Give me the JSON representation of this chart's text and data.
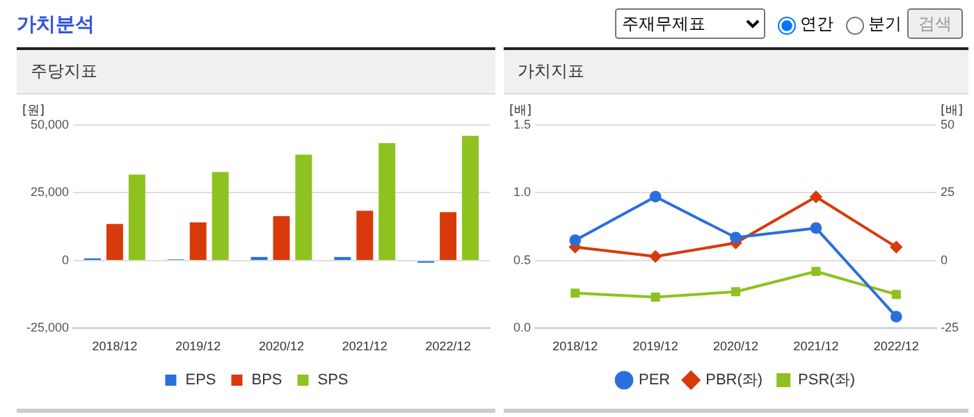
{
  "chart_data": [
    {
      "type": "bar",
      "title": "주당지표",
      "ylabel": "[원]",
      "categories": [
        "2018/12",
        "2019/12",
        "2020/12",
        "2021/12",
        "2022/12"
      ],
      "series": [
        {
          "name": "EPS",
          "color": "#2a6fdb",
          "values": [
            800,
            400,
            1300,
            1300,
            -800
          ]
        },
        {
          "name": "BPS",
          "color": "#d83a0c",
          "values": [
            13500,
            14100,
            16400,
            18400,
            17900
          ]
        },
        {
          "name": "SPS",
          "color": "#8dc21f",
          "values": [
            31700,
            32700,
            39100,
            43300,
            46000
          ]
        }
      ],
      "ylim": [
        -25000,
        50000
      ],
      "yticks": [
        {
          "value": -25000,
          "label": "-25,000"
        },
        {
          "value": 0,
          "label": "0"
        },
        {
          "value": 25000,
          "label": "25,000"
        },
        {
          "value": 50000,
          "label": "50,000"
        }
      ],
      "grid": "y",
      "legend": "bottom",
      "annotations": [
        "가치분석",
        "주재무제표",
        "연간",
        "분기",
        "검색"
      ]
    },
    {
      "type": "line",
      "title": "가치지표",
      "ylabel": "[배]",
      "y2label": "[배]",
      "categories": [
        "2018/12",
        "2019/12",
        "2020/12",
        "2021/12",
        "2022/12"
      ],
      "series": [
        {
          "name": "PER",
          "color": "#2a6fdb",
          "axis": "y2",
          "marker": "circle",
          "values": [
            7.5,
            23.6,
            8.5,
            12,
            -20.7
          ]
        },
        {
          "name": "PBR(좌)",
          "color": "#d83a0c",
          "marker": "diamond",
          "values": [
            0.6,
            0.53,
            0.63,
            0.97,
            0.6
          ]
        },
        {
          "name": "PSR(좌)",
          "color": "#8dc21f",
          "marker": "square",
          "values": [
            0.26,
            0.23,
            0.27,
            0.42,
            0.25
          ]
        }
      ],
      "ylim": [
        0,
        1.5
      ],
      "yticks": [
        {
          "value": 0,
          "label": "0.0"
        },
        {
          "value": 0.5,
          "label": "0.5"
        },
        {
          "value": 1,
          "label": "1.0"
        },
        {
          "value": 1.5,
          "label": "1.5"
        }
      ],
      "y2lim": [
        -25,
        50
      ],
      "y2ticks": [
        -25,
        0,
        25,
        50
      ],
      "grid": "y",
      "legend": "bottom",
      "line_style": "solid"
    }
  ]
}
